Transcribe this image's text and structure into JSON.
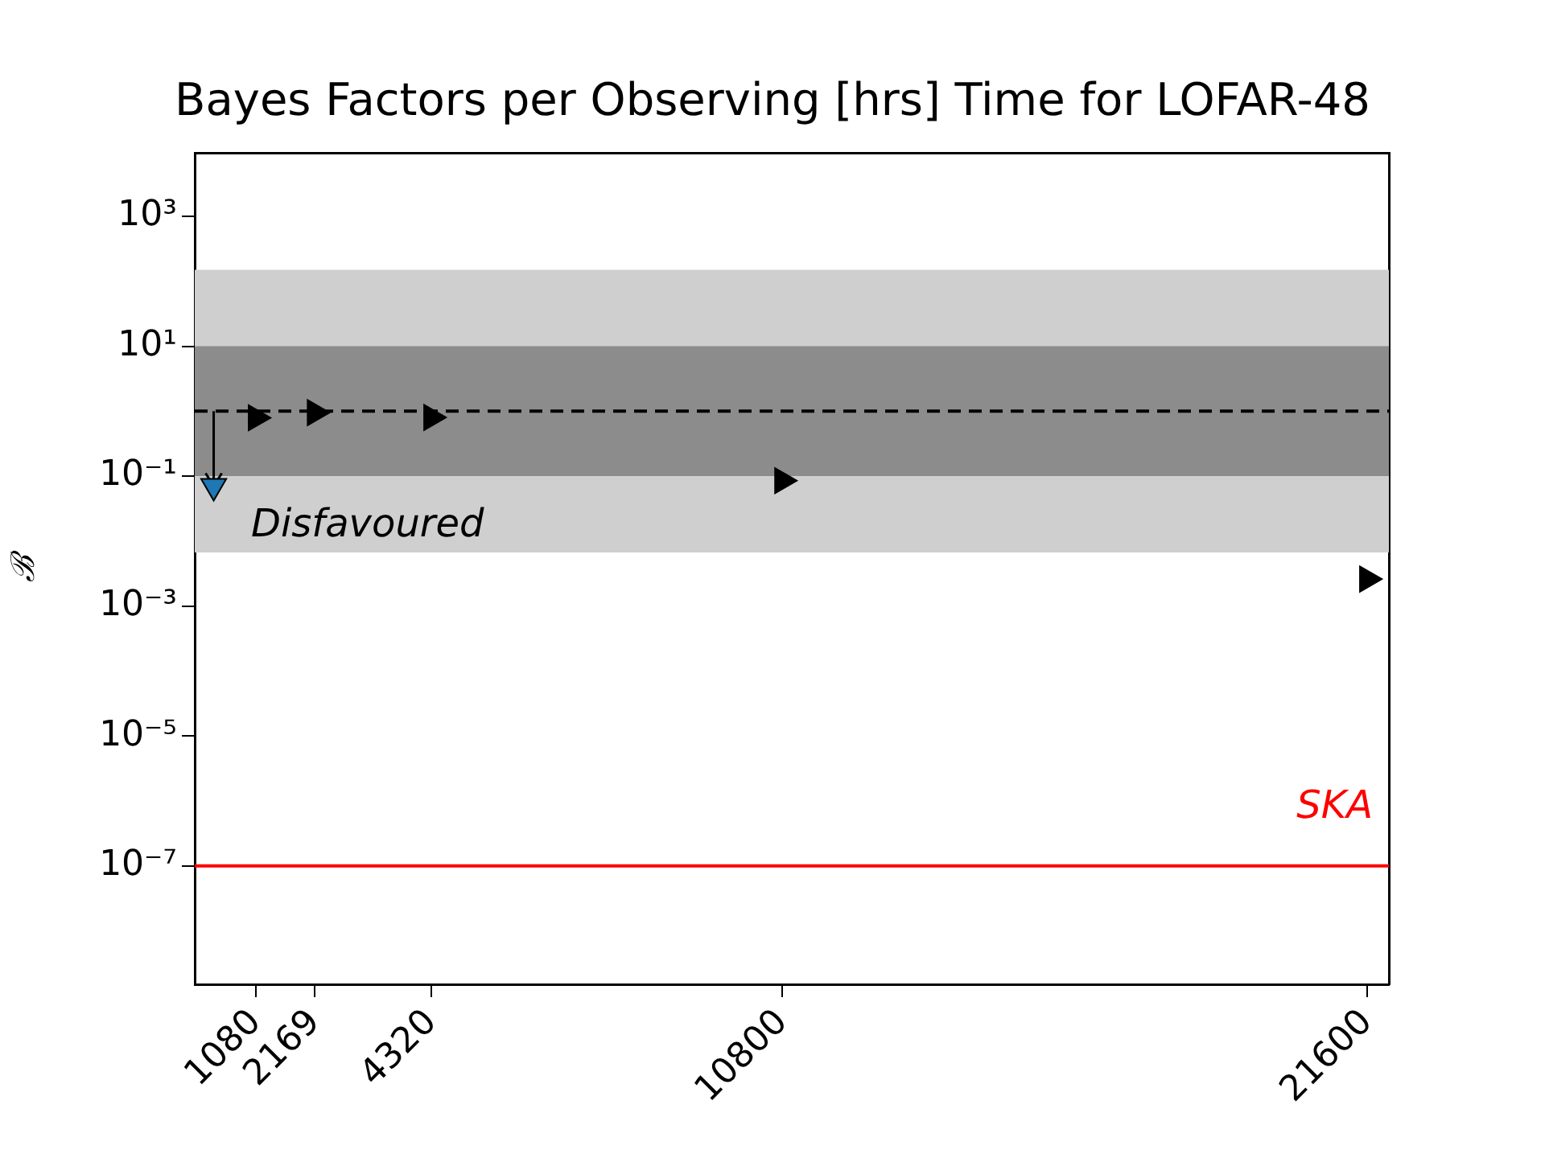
{
  "chart_data": {
    "type": "scatter",
    "title": "Bayes Factors per Observing [hrs] Time for LOFAR-48",
    "ylabel": "ℬ",
    "log": "y",
    "grid": false,
    "legend": false,
    "xlim": [
      -50,
      22000
    ],
    "xticks": [
      1080,
      2169,
      4320,
      10800,
      21600
    ],
    "ylim": [
      1.5e-09,
      9500
    ],
    "yticks": [
      {
        "value": 1000,
        "label": "10³"
      },
      {
        "value": 10,
        "label": "10¹"
      },
      {
        "value": 0.1,
        "label": "10⁻¹"
      },
      {
        "value": 0.001,
        "label": "10⁻³"
      },
      {
        "value": 1e-05,
        "label": "10⁻⁵"
      },
      {
        "value": 1e-07,
        "label": "10⁻⁷"
      }
    ],
    "series": [
      {
        "color": "#000000",
        "marker": "triangle-right",
        "x": [
          1080,
          2169,
          4320,
          10800,
          21600
        ],
        "values": [
          0.79,
          0.95,
          0.8,
          0.085,
          0.0026
        ]
      },
      {
        "color": "#1f77b4",
        "marker": "triangle-down",
        "x": [
          300
        ],
        "values": [
          0.07
        ],
        "errors": [
          [
            0.07,
            1
          ]
        ]
      }
    ],
    "bands": [
      {
        "axis": "y",
        "from": 0.0067,
        "to": 150,
        "color": "#cfcfcf",
        "label": "Disfavoured"
      },
      {
        "axis": "y",
        "from": 0.1,
        "to": 10,
        "color": "#8c8c8c"
      }
    ],
    "ref_lines": [
      {
        "axis": "y",
        "value": 1,
        "color": "#000000",
        "line_style": "dashed"
      },
      {
        "axis": "y",
        "value": 1e-07,
        "color": "#ff0000",
        "line_style": "solid",
        "label": "SKA"
      }
    ]
  }
}
